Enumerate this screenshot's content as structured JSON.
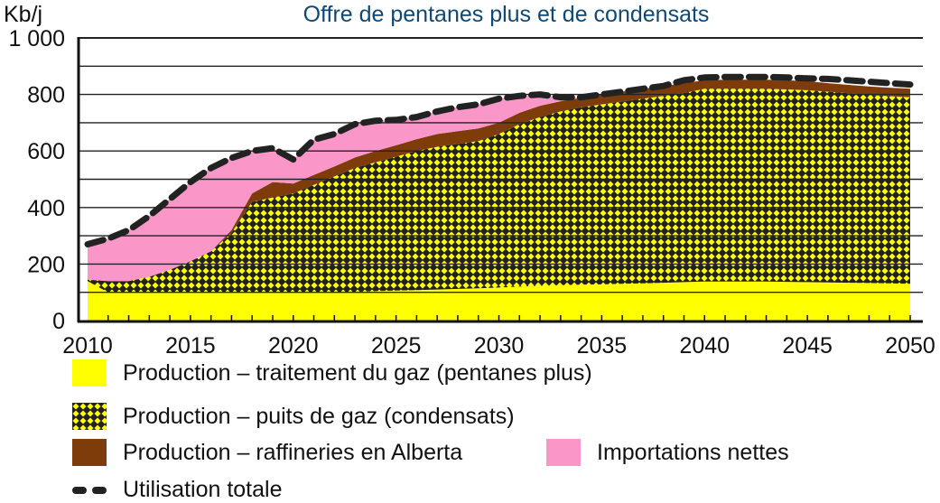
{
  "chart_data": {
    "type": "area",
    "title": "Offre de pentanes plus et de condensats",
    "ylabel": "Kb/j",
    "xlabel": "",
    "ylim": [
      0,
      1000
    ],
    "xlim": [
      2010,
      2050
    ],
    "grid": true,
    "yticks": [
      0,
      200,
      400,
      600,
      800,
      1000
    ],
    "ytick_labels": [
      "0",
      "200",
      "400",
      "600",
      "800",
      "1 000"
    ],
    "xticks": [
      2010,
      2015,
      2020,
      2025,
      2030,
      2035,
      2040,
      2045,
      2050
    ],
    "xtick_labels": [
      "2010",
      "2015",
      "2020",
      "2025",
      "2030",
      "2035",
      "2040",
      "2045",
      "2050"
    ],
    "x": [
      2010,
      2011,
      2012,
      2013,
      2014,
      2015,
      2016,
      2017,
      2018,
      2019,
      2020,
      2021,
      2022,
      2023,
      2024,
      2025,
      2026,
      2027,
      2028,
      2029,
      2030,
      2031,
      2032,
      2033,
      2034,
      2035,
      2036,
      2037,
      2038,
      2039,
      2040,
      2041,
      2042,
      2043,
      2044,
      2045,
      2046,
      2047,
      2048,
      2049,
      2050
    ],
    "stacking": "stacked",
    "series": [
      {
        "name": "Production – traitement du gaz (pentanes plus)",
        "color": "#ffff00",
        "pattern": "solid",
        "values": [
          140,
          100,
          100,
          100,
          100,
          100,
          100,
          100,
          100,
          100,
          100,
          100,
          100,
          102,
          104,
          106,
          108,
          110,
          112,
          114,
          117,
          120,
          123,
          125,
          127,
          128,
          130,
          132,
          134,
          136,
          138,
          138,
          138,
          138,
          137,
          136,
          135,
          134,
          133,
          132,
          130
        ]
      },
      {
        "name": "Production – puits de gaz (condensats)",
        "color": "#ffff00",
        "pattern": "diamond-checker",
        "values": [
          5,
          40,
          40,
          55,
          80,
          110,
          145,
          210,
          320,
          335,
          350,
          380,
          410,
          438,
          456,
          474,
          492,
          505,
          513,
          521,
          543,
          575,
          597,
          615,
          628,
          637,
          645,
          653,
          661,
          669,
          682,
          682,
          682,
          682,
          681,
          679,
          675,
          670,
          665,
          662,
          660
        ]
      },
      {
        "name": "Production – raffineries en Alberta",
        "color": "#7f3c0b",
        "pattern": "solid",
        "values": [
          0,
          0,
          0,
          0,
          0,
          0,
          0,
          10,
          30,
          55,
          35,
          35,
          35,
          37,
          40,
          40,
          42,
          45,
          45,
          45,
          40,
          40,
          40,
          36,
          33,
          35,
          35,
          35,
          35,
          35,
          30,
          32,
          32,
          32,
          32,
          32,
          30,
          30,
          30,
          30,
          30
        ]
      },
      {
        "name": "Importations nettes",
        "color": "#fa96c8",
        "pattern": "solid",
        "values": [
          125,
          150,
          180,
          215,
          250,
          280,
          295,
          255,
          150,
          120,
          85,
          125,
          115,
          120,
          107,
          90,
          80,
          80,
          85,
          85,
          85,
          60,
          40,
          14,
          0,
          0,
          0,
          0,
          0,
          0,
          0,
          0,
          0,
          0,
          0,
          0,
          0,
          0,
          0,
          0,
          0
        ]
      },
      {
        "name": "Utilisation totale",
        "color": "#222222",
        "pattern": "dashed-line",
        "values": [
          270,
          290,
          320,
          370,
          430,
          490,
          540,
          575,
          600,
          610,
          570,
          640,
          660,
          695,
          707,
          710,
          720,
          740,
          755,
          765,
          785,
          795,
          800,
          790,
          790,
          800,
          810,
          820,
          830,
          850,
          860,
          862,
          862,
          862,
          860,
          857,
          855,
          850,
          845,
          840,
          835
        ]
      }
    ],
    "legend_position": "bottom"
  },
  "header": {
    "title": "Offre de pentanes plus et de condensats",
    "unit": "Kb/j"
  },
  "legend": [
    {
      "label": "Production – traitement du gaz (pentanes plus)",
      "swatch": "solid-yellow",
      "color": "#ffff00"
    },
    {
      "label": "Production – puits de gaz (condensats)",
      "swatch": "diamond-checker",
      "color": "#ffff00"
    },
    {
      "label": "Production – raffineries en Alberta",
      "swatch": "solid-brown",
      "color": "#7f3c0b"
    },
    {
      "label": "Importations nettes",
      "swatch": "solid-pink",
      "color": "#fa96c8"
    },
    {
      "label": "Utilisation totale",
      "swatch": "dashed-line",
      "color": "#222222"
    }
  ]
}
